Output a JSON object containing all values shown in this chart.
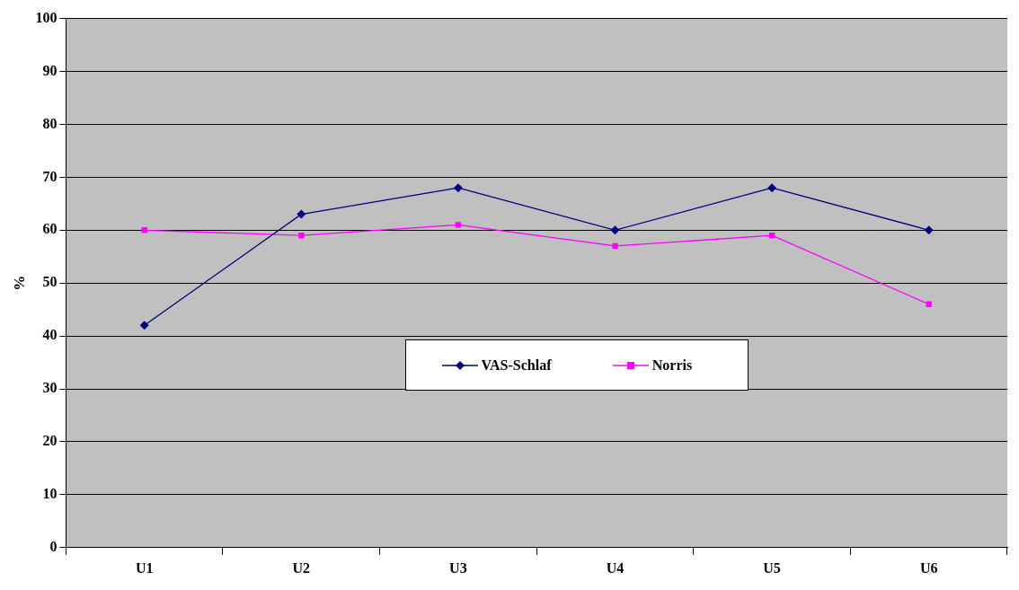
{
  "chart_data": {
    "type": "line",
    "ylabel": "%",
    "categories": [
      "U1",
      "U2",
      "U3",
      "U4",
      "U5",
      "U6"
    ],
    "series": [
      {
        "name": "VAS-Schlaf",
        "color": "#000080",
        "marker": "diamond",
        "values": [
          42,
          63,
          68,
          60,
          68,
          60
        ]
      },
      {
        "name": "Norris",
        "color": "#ff00ff",
        "marker": "square",
        "values": [
          60,
          59,
          61,
          57,
          59,
          46
        ]
      }
    ],
    "ylim": [
      0,
      100
    ],
    "yticks": [
      0,
      10,
      20,
      30,
      40,
      50,
      60,
      70,
      80,
      90,
      100
    ],
    "grid": "y",
    "legend": "bottom",
    "line_style": "solid"
  }
}
